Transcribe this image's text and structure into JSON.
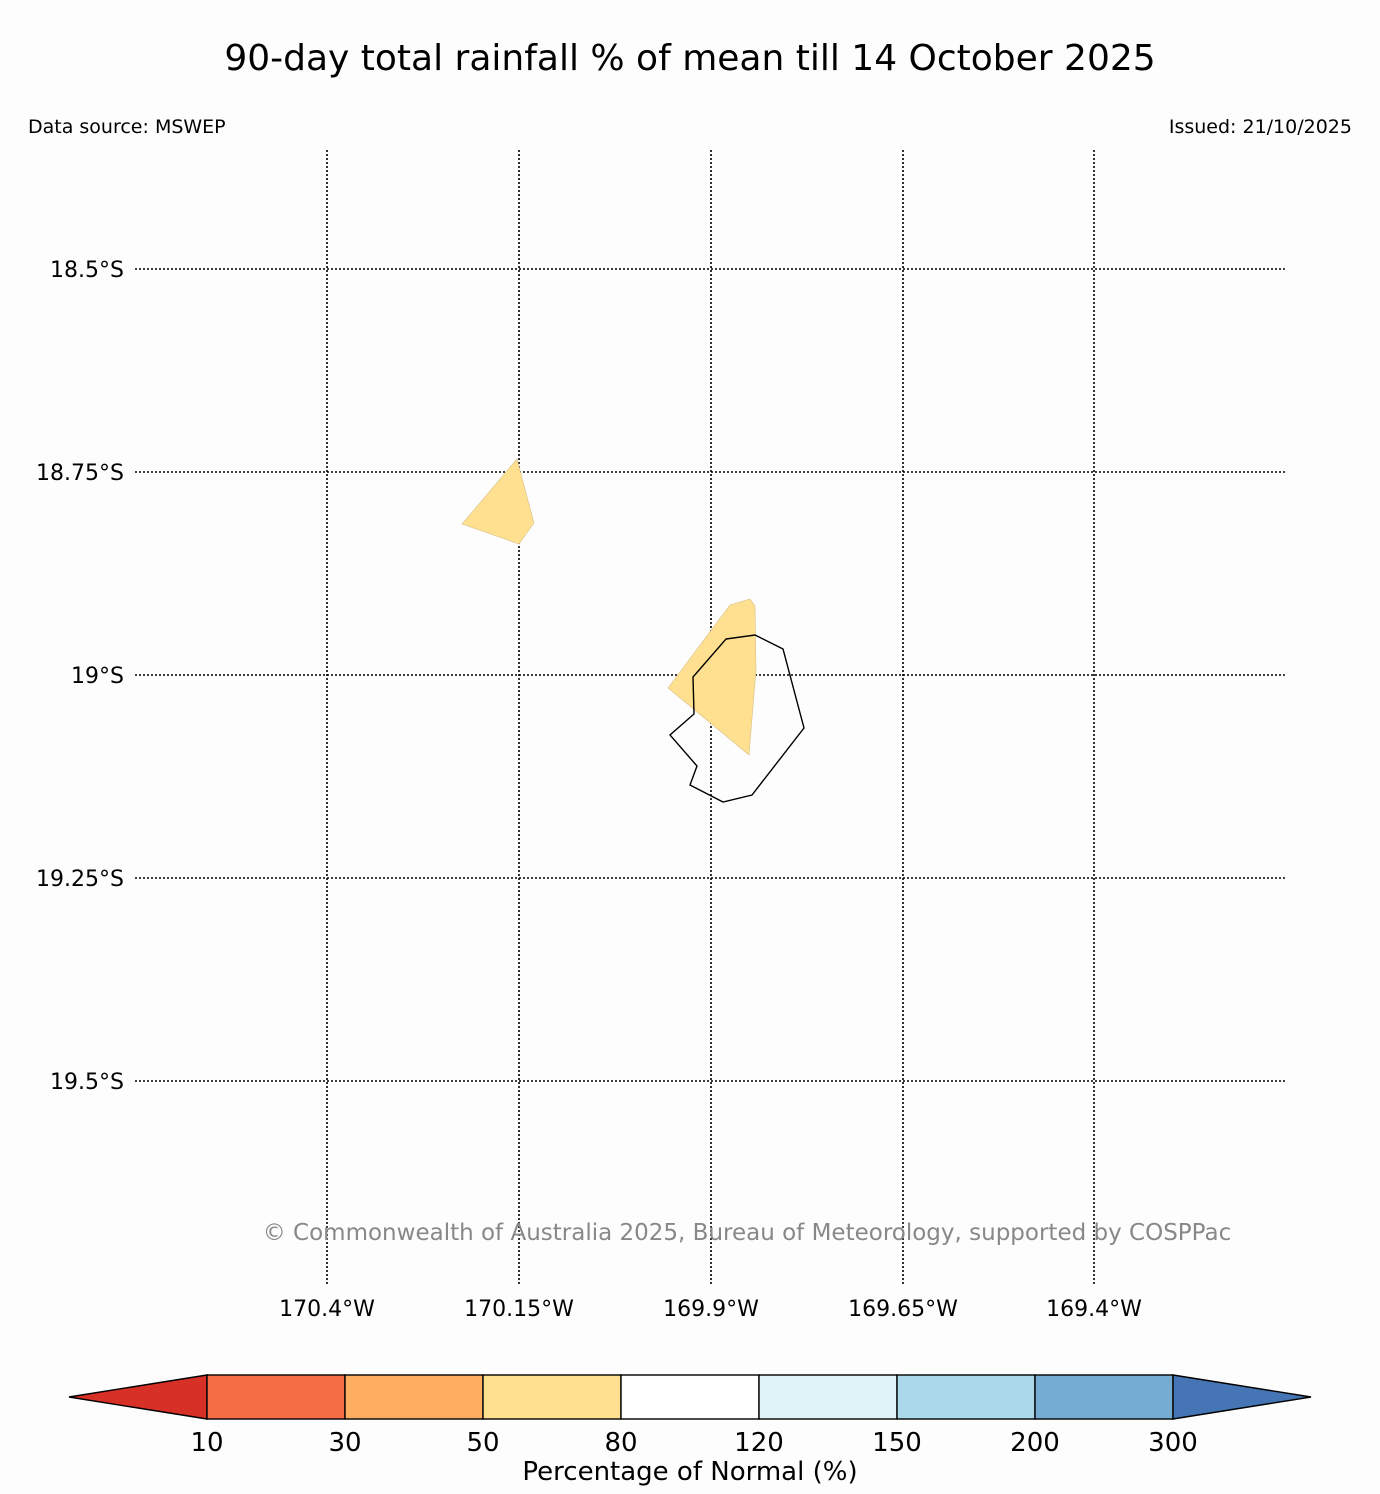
{
  "header": {
    "title": "90-day total rainfall % of mean till 14 October 2025",
    "source": "Data source: MSWEP",
    "issued": "Issued: 21/10/2025"
  },
  "map": {
    "lat_labels": [
      "18.5°S",
      "18.75°S",
      "19°S",
      "19.25°S",
      "19.5°S"
    ],
    "lon_labels": [
      "170.4°W",
      "170.15°W",
      "169.9°W",
      "169.65°W",
      "169.4°W"
    ],
    "copyright": "© Commonwealth of Australia 2025, Bureau of Meteorology, supported by COSPPac",
    "anomaly_category": "50-80",
    "anomaly_fill": "#fee090"
  },
  "colorbar": {
    "title": "Percentage of Normal (%)",
    "ticks": [
      "10",
      "30",
      "50",
      "80",
      "120",
      "150",
      "200",
      "300"
    ],
    "under_color": "#d73027",
    "over_color": "#4575b4",
    "bin_colors": [
      "#f46d43",
      "#fdae61",
      "#fee090",
      "#ffffff",
      "#e0f3f8",
      "#abd9e9",
      "#74add1"
    ]
  }
}
